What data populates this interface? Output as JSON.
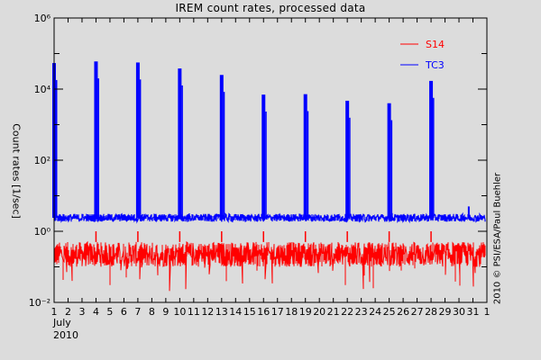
{
  "chart_data": {
    "type": "line",
    "title": "IREM count rates, processed data",
    "xlabel": "July 2010",
    "ylabel": "Count rates [1/sec]",
    "yscale": "log",
    "ylim": [
      0.01,
      1000000
    ],
    "xlim": [
      1,
      32
    ],
    "y_tick_labels": [
      "10⁶",
      "10⁴",
      "10²",
      "10⁰",
      "10⁻²"
    ],
    "y_tick_values": [
      1000000,
      10000,
      100,
      1,
      0.01
    ],
    "x_tick_labels": [
      "1",
      "2",
      "3",
      "4",
      "5",
      "6",
      "7",
      "8",
      "9",
      "10",
      "11",
      "12",
      "13",
      "14",
      "15",
      "16",
      "17",
      "18",
      "19",
      "20",
      "21",
      "22",
      "23",
      "24",
      "25",
      "26",
      "27",
      "28",
      "29",
      "30",
      "31",
      "1"
    ],
    "x_sublabel_month": "July",
    "x_sublabel_year": "2010",
    "grid": false,
    "legend_position": "upper right (inside)",
    "series": [
      {
        "name": "S14",
        "color": "#ff0000",
        "baseline_range": [
          0.1,
          0.5
        ],
        "baseline_typical": 0.3,
        "min_dropouts": 0.02,
        "spike_days": [
          4,
          7,
          10,
          13,
          16,
          19,
          22,
          25,
          28
        ],
        "spike_peak": 1.0
      },
      {
        "name": "TC3",
        "color": "#0000ff",
        "baseline_typical": 2.4,
        "peaks": [
          {
            "day": 1.0,
            "value": 54000
          },
          {
            "day": 4.0,
            "value": 60000
          },
          {
            "day": 7.0,
            "value": 56000
          },
          {
            "day": 10.0,
            "value": 38000
          },
          {
            "day": 13.0,
            "value": 25000
          },
          {
            "day": 16.0,
            "value": 7000
          },
          {
            "day": 19.0,
            "value": 7200
          },
          {
            "day": 22.0,
            "value": 4700
          },
          {
            "day": 25.0,
            "value": 4000
          },
          {
            "day": 28.0,
            "value": 17000
          },
          {
            "day": 30.7,
            "value": 5
          }
        ]
      }
    ]
  },
  "credit": "2010 © PSI/ESA/Paul Buehler"
}
